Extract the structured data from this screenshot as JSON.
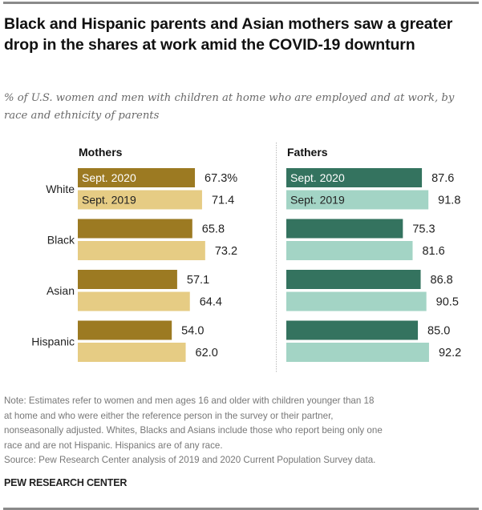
{
  "header": {
    "title": "Black and Hispanic parents and Asian mothers saw a greater drop in the shares at work amid the COVID-19 downturn",
    "subtitle": "% of U.S. women and men with children at home who are employed and at work, by race and ethnicity of parents"
  },
  "chart_data": {
    "type": "bar",
    "orientation": "horizontal",
    "title": "Black and Hispanic parents and Asian mothers saw a greater drop in the shares at work amid the COVID-19 downturn",
    "subtitle": "% of U.S. women and men with children at home who are employed and at work, by race and ethnicity of parents",
    "categories": [
      "White",
      "Black",
      "Asian",
      "Hispanic"
    ],
    "unit": "%",
    "panels": [
      {
        "name": "Mothers",
        "colors": {
          "Sept. 2020": "#9c7a22",
          "Sept. 2019": "#e6cc84"
        },
        "series": [
          {
            "name": "Sept. 2020",
            "values": [
              67.3,
              65.8,
              57.1,
              54.0
            ],
            "labels": [
              "67.3%",
              "65.8",
              "57.1",
              "54.0"
            ]
          },
          {
            "name": "Sept. 2019",
            "values": [
              71.4,
              73.2,
              64.4,
              62.0
            ],
            "labels": [
              "71.4",
              "73.2",
              "64.4",
              "62.0"
            ]
          }
        ]
      },
      {
        "name": "Fathers",
        "colors": {
          "Sept. 2020": "#34735f",
          "Sept. 2019": "#a3d4c5"
        },
        "series": [
          {
            "name": "Sept. 2020",
            "values": [
              87.6,
              75.3,
              86.8,
              85.0
            ],
            "labels": [
              "87.6",
              "75.3",
              "86.8",
              "85.0"
            ]
          },
          {
            "name": "Sept. 2019",
            "values": [
              91.8,
              81.6,
              90.5,
              92.2
            ],
            "labels": [
              "91.8",
              "81.6",
              "90.5",
              "92.2"
            ]
          }
        ]
      }
    ],
    "legend": "inside-first-bars",
    "xlabel": "",
    "ylabel": "",
    "grid": false
  },
  "footer": {
    "note_lines": [
      "Note: Estimates refer to women and men ages 16 and older with children younger than 18",
      "at home and who were either the reference person in the survey or their partner,",
      "nonseasonally adjusted. Whites, Blacks and Asians include those who report being only one",
      "race and are not Hispanic. Hispanics are of any race."
    ],
    "source": "Source: Pew Research Center analysis of 2019 and 2020 Current Population Survey data.",
    "brand": "PEW RESEARCH CENTER"
  }
}
